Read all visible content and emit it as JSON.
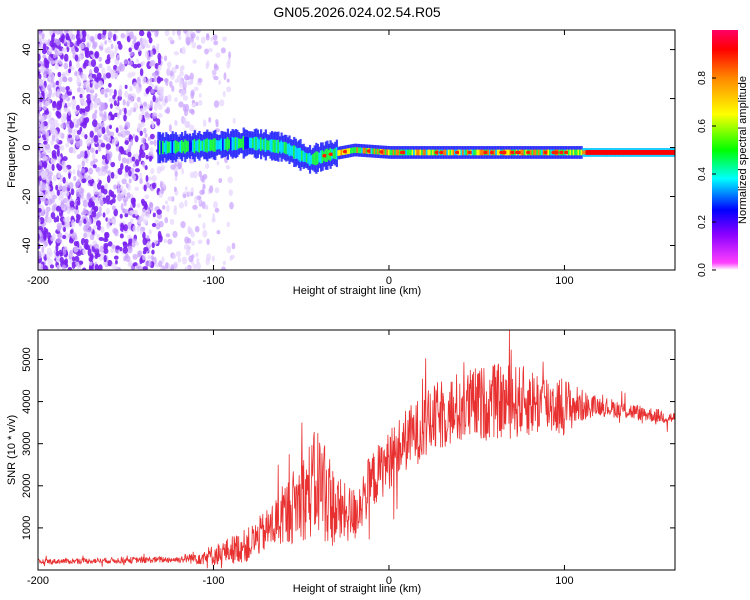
{
  "title": "GN05.2026.024.02.54.R05",
  "chart_data": [
    {
      "type": "heatmap",
      "name": "spectrogram",
      "xlabel": "Height of straight line (km)",
      "ylabel": "Frequency (Hz)",
      "xlim": [
        -200,
        163
      ],
      "ylim": [
        -50,
        48
      ],
      "xticks": [
        -200,
        -100,
        0,
        100
      ],
      "yticks": [
        -40,
        -20,
        0,
        20,
        40
      ],
      "xtick_labels": [
        "-200",
        "-100",
        "0",
        "100"
      ],
      "ytick_labels": [
        "-40",
        "-20",
        "0",
        "20",
        "40"
      ],
      "colorbar": {
        "label": "Normalized spectral amplitude",
        "range": [
          0,
          1
        ],
        "ticks": [
          0,
          0.2,
          0.4,
          0.6,
          0.8
        ],
        "tick_labels": [
          "0.0",
          "0.2",
          "0.4",
          "0.6",
          "0.8"
        ],
        "colors": [
          "#ffffff",
          "#ff00ff",
          "#8800ff",
          "#0000ff",
          "#00ffff",
          "#00ff00",
          "#ffff00",
          "#ff8800",
          "#ff0000"
        ]
      },
      "signal_band": [
        {
          "x": -130,
          "f": 0
        },
        {
          "x": -100,
          "f": 1
        },
        {
          "x": -80,
          "f": 2
        },
        {
          "x": -60,
          "f": 0
        },
        {
          "x": -45,
          "f": -5
        },
        {
          "x": -35,
          "f": -3
        },
        {
          "x": -20,
          "f": -1
        },
        {
          "x": 0,
          "f": -2
        },
        {
          "x": 50,
          "f": -2
        },
        {
          "x": 100,
          "f": -2
        },
        {
          "x": 163,
          "f": -2
        }
      ]
    },
    {
      "type": "line",
      "name": "snr",
      "xlabel": "Height of straight line (km)",
      "ylabel": "SNR (10 * v/v)",
      "xlim": [
        -200,
        163
      ],
      "ylim": [
        0,
        5700
      ],
      "xticks": [
        -200,
        -100,
        0,
        100
      ],
      "yticks": [
        1000,
        2000,
        3000,
        4000,
        5000
      ],
      "xtick_labels": [
        "-200",
        "-100",
        "0",
        "100"
      ],
      "ytick_labels": [
        "1000",
        "2000",
        "3000",
        "4000",
        "5000"
      ],
      "color": "#e83030",
      "envelope": [
        {
          "x": -200,
          "y": 200
        },
        {
          "x": -120,
          "y": 250
        },
        {
          "x": -100,
          "y": 350
        },
        {
          "x": -80,
          "y": 600
        },
        {
          "x": -65,
          "y": 1100
        },
        {
          "x": -50,
          "y": 1700
        },
        {
          "x": -40,
          "y": 2100
        },
        {
          "x": -30,
          "y": 1400
        },
        {
          "x": -20,
          "y": 1300
        },
        {
          "x": -10,
          "y": 2100
        },
        {
          "x": 0,
          "y": 2600
        },
        {
          "x": 10,
          "y": 3100
        },
        {
          "x": 20,
          "y": 3400
        },
        {
          "x": 30,
          "y": 3700
        },
        {
          "x": 45,
          "y": 3900
        },
        {
          "x": 60,
          "y": 4000
        },
        {
          "x": 80,
          "y": 4000
        },
        {
          "x": 100,
          "y": 3900
        },
        {
          "x": 120,
          "y": 3900
        },
        {
          "x": 140,
          "y": 3750
        },
        {
          "x": 163,
          "y": 3600
        }
      ],
      "noise": [
        {
          "x": -200,
          "a": 60
        },
        {
          "x": -120,
          "a": 80
        },
        {
          "x": -100,
          "a": 250
        },
        {
          "x": -70,
          "a": 500
        },
        {
          "x": -50,
          "a": 1000
        },
        {
          "x": -40,
          "a": 1400
        },
        {
          "x": -25,
          "a": 700
        },
        {
          "x": 0,
          "a": 700
        },
        {
          "x": 40,
          "a": 900
        },
        {
          "x": 70,
          "a": 900
        },
        {
          "x": 100,
          "a": 700
        },
        {
          "x": 115,
          "a": 250
        },
        {
          "x": 163,
          "a": 150
        }
      ]
    }
  ]
}
